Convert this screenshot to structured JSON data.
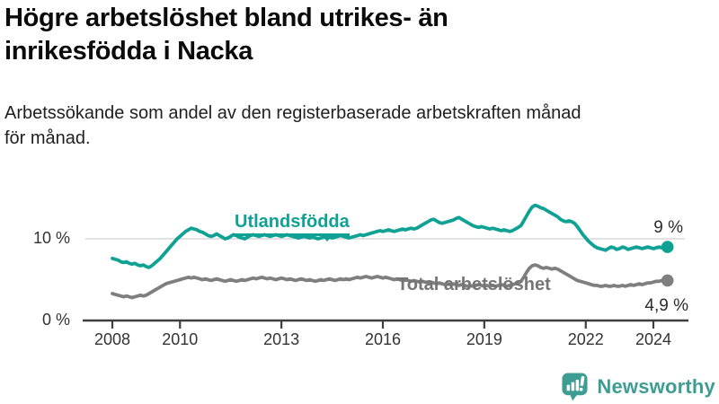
{
  "header": {
    "title_lines": [
      "Högre arbetslöshet bland utrikes- än",
      "inrikesfödda i Nacka"
    ],
    "subtitle_lines": [
      "Arbetssökande som andel av den registerbaserade arbetskraften månad",
      "för månad."
    ]
  },
  "chart_data": {
    "type": "line",
    "title": "Högre arbetslöshet bland utrikes- än inrikesfödda i Nacka",
    "subtitle": "Arbetssökande som andel av den registerbaserade arbetskraften månad för månad.",
    "x_unit": "month",
    "x_start": "2008-01",
    "x_end": "2024-06",
    "x_tick_years": [
      2008,
      2010,
      2013,
      2016,
      2019,
      2022,
      2024
    ],
    "ylim": [
      0,
      15
    ],
    "y_ticks": [
      {
        "value": 0,
        "label": "0 %"
      },
      {
        "value": 10,
        "label": "10 %"
      }
    ],
    "grid": "single-horizontal-gridline-at-10",
    "legend_position": "inline-series-labels",
    "series": [
      {
        "name": "Utlandsfödda",
        "color": "#0fa294",
        "end_label": "9 %",
        "end_value": 9.0,
        "values": [
          7.6,
          7.5,
          7.4,
          7.2,
          7.1,
          7.2,
          7.0,
          6.9,
          7.0,
          6.8,
          6.7,
          6.8,
          6.6,
          6.5,
          6.7,
          7.0,
          7.3,
          7.6,
          8.0,
          8.4,
          8.8,
          9.2,
          9.6,
          10.0,
          10.3,
          10.6,
          10.9,
          11.1,
          11.3,
          11.2,
          11.1,
          10.9,
          10.8,
          10.6,
          10.4,
          10.3,
          10.4,
          10.6,
          10.4,
          10.2,
          10.0,
          10.1,
          10.3,
          10.5,
          10.4,
          10.2,
          10.1,
          10.0,
          10.2,
          10.4,
          10.5,
          10.4,
          10.3,
          10.4,
          10.5,
          10.4,
          10.3,
          10.4,
          10.5,
          10.4,
          10.3,
          10.4,
          10.5,
          10.4,
          10.3,
          10.2,
          10.1,
          10.2,
          10.3,
          10.2,
          10.1,
          10.2,
          10.1,
          10.0,
          10.1,
          10.2,
          10.3,
          10.2,
          10.1,
          10.2,
          10.3,
          10.4,
          10.3,
          10.2,
          10.1,
          10.2,
          10.3,
          10.4,
          10.5,
          10.4,
          10.5,
          10.6,
          10.7,
          10.8,
          10.9,
          11.0,
          10.9,
          11.0,
          11.1,
          11.0,
          10.9,
          11.0,
          11.1,
          11.2,
          11.1,
          11.2,
          11.3,
          11.2,
          11.3,
          11.5,
          11.7,
          11.9,
          12.1,
          12.3,
          12.4,
          12.2,
          12.0,
          11.9,
          12.0,
          12.1,
          12.2,
          12.3,
          12.5,
          12.6,
          12.4,
          12.2,
          12.0,
          11.8,
          11.6,
          11.5,
          11.4,
          11.5,
          11.4,
          11.3,
          11.2,
          11.3,
          11.2,
          11.1,
          11.0,
          11.1,
          11.0,
          10.9,
          11.0,
          11.2,
          11.4,
          11.6,
          12.2,
          12.8,
          13.4,
          13.9,
          14.1,
          14.0,
          13.8,
          13.7,
          13.5,
          13.3,
          13.1,
          12.9,
          12.7,
          12.4,
          12.2,
          12.1,
          12.2,
          12.1,
          11.9,
          11.5,
          11.0,
          10.5,
          10.1,
          9.7,
          9.4,
          9.1,
          8.9,
          8.8,
          8.7,
          8.6,
          8.8,
          9.0,
          8.9,
          8.7,
          8.8,
          9.0,
          8.9,
          8.7,
          8.8,
          8.9,
          9.0,
          8.9,
          8.8,
          8.9,
          9.0,
          8.9,
          8.8,
          8.9,
          9.0,
          8.9,
          8.9,
          9.0
        ]
      },
      {
        "name": "Total arbetslöshet",
        "color": "#7f7f80",
        "end_label": "4,9 %",
        "end_value": 4.9,
        "values": [
          3.3,
          3.2,
          3.1,
          3.0,
          2.9,
          3.0,
          2.9,
          2.8,
          2.9,
          3.0,
          3.1,
          3.0,
          3.1,
          3.3,
          3.5,
          3.7,
          3.9,
          4.1,
          4.3,
          4.5,
          4.6,
          4.7,
          4.8,
          4.9,
          5.0,
          5.1,
          5.2,
          5.3,
          5.2,
          5.3,
          5.2,
          5.1,
          5.0,
          5.1,
          5.0,
          4.9,
          5.0,
          5.1,
          5.0,
          4.9,
          4.8,
          4.9,
          5.0,
          4.9,
          4.8,
          4.9,
          5.0,
          4.9,
          5.0,
          5.1,
          5.2,
          5.1,
          5.2,
          5.3,
          5.2,
          5.1,
          5.2,
          5.1,
          5.0,
          5.1,
          5.2,
          5.1,
          5.0,
          5.1,
          5.0,
          4.9,
          5.0,
          5.1,
          5.0,
          4.9,
          5.0,
          4.9,
          4.8,
          4.9,
          5.0,
          4.9,
          5.0,
          5.1,
          5.0,
          4.9,
          5.0,
          5.1,
          5.0,
          5.1,
          5.0,
          5.1,
          5.2,
          5.3,
          5.2,
          5.3,
          5.4,
          5.3,
          5.2,
          5.3,
          5.4,
          5.3,
          5.2,
          5.3,
          5.2,
          5.1,
          5.0,
          5.1,
          5.0,
          4.9,
          5.0,
          4.9,
          4.8,
          4.9,
          4.8,
          4.7,
          4.8,
          4.7,
          4.6,
          4.7,
          4.6,
          4.5,
          4.6,
          4.5,
          4.4,
          4.5,
          4.4,
          4.5,
          4.4,
          4.3,
          4.4,
          4.3,
          4.2,
          4.3,
          4.2,
          4.3,
          4.4,
          4.3,
          4.2,
          4.3,
          4.2,
          4.3,
          4.2,
          4.3,
          4.4,
          4.3,
          4.2,
          4.3,
          4.4,
          4.5,
          4.6,
          4.8,
          5.3,
          5.9,
          6.4,
          6.7,
          6.8,
          6.7,
          6.5,
          6.4,
          6.5,
          6.4,
          6.3,
          6.4,
          6.3,
          6.1,
          5.9,
          5.7,
          5.5,
          5.3,
          5.1,
          4.9,
          4.8,
          4.7,
          4.6,
          4.5,
          4.4,
          4.3,
          4.3,
          4.2,
          4.2,
          4.3,
          4.2,
          4.2,
          4.3,
          4.2,
          4.2,
          4.3,
          4.2,
          4.3,
          4.4,
          4.3,
          4.4,
          4.5,
          4.4,
          4.5,
          4.6,
          4.6,
          4.7,
          4.8,
          4.8,
          4.9,
          4.9,
          4.9
        ]
      }
    ]
  },
  "footer": {
    "brand": "Newsworthy",
    "brand_color": "#3e9d92"
  }
}
